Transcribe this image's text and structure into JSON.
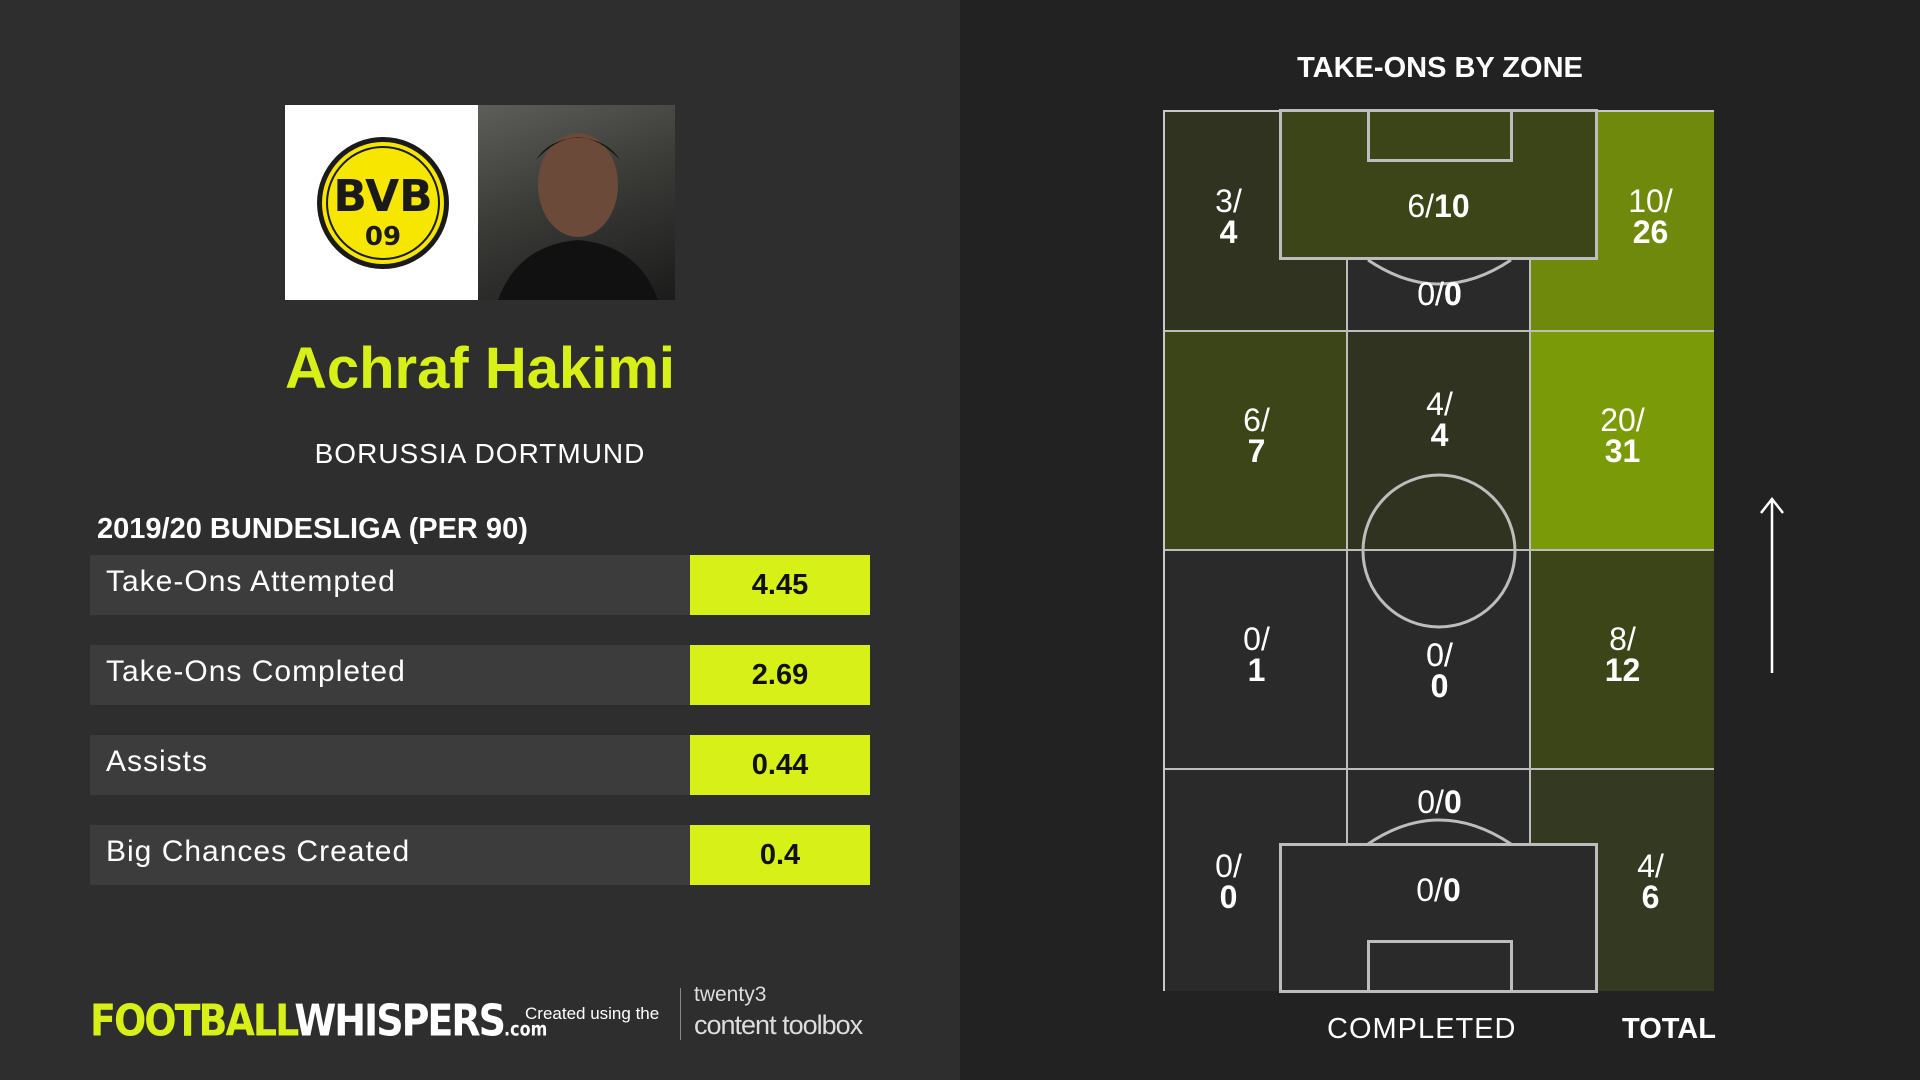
{
  "player": {
    "name": "Achraf Hakimi",
    "club": "BORUSSIA DORTMUND",
    "crest_text_top": "BVB",
    "crest_text_bottom": "09"
  },
  "stats": {
    "heading": "2019/20 BUNDESLIGA (PER 90)",
    "rows": [
      {
        "label": "Take-Ons Attempted",
        "value": "4.45"
      },
      {
        "label": "Take-Ons Completed",
        "value": "2.69"
      },
      {
        "label": "Assists",
        "value": "0.44"
      },
      {
        "label": "Big Chances Created",
        "value": "0.4"
      }
    ]
  },
  "footer": {
    "brand_main": "FOOTBALL",
    "brand_second": "WHISPERS",
    "brand_suffix": ".com",
    "created_using": "Created using the",
    "toolbox_top": "twenty3",
    "toolbox_bottom": "content toolbox"
  },
  "chart": {
    "title": "TAKE-ONS BY ZONE",
    "legend_completed": "COMPLETED",
    "legend_total": "TOTAL"
  },
  "colors": {
    "accent": "#d6f018",
    "zone_dark": "#2e2e2e",
    "zone_low": "#343a22",
    "zone_mid": "#3c4518",
    "zone_high": "#6f890c",
    "zone_max": "#7b9a08"
  },
  "chart_data": {
    "type": "heatmap",
    "title": "TAKE-ONS BY ZONE",
    "zones": [
      {
        "zone": "attacking-left-wide",
        "completed": "3",
        "total": "4"
      },
      {
        "zone": "attacking-penalty-area",
        "completed": "6",
        "total": "10"
      },
      {
        "zone": "attacking-box-edge",
        "completed": "0",
        "total": "0"
      },
      {
        "zone": "attacking-right-wide",
        "completed": "10",
        "total": "26"
      },
      {
        "zone": "upper-mid-left",
        "completed": "6",
        "total": "7"
      },
      {
        "zone": "upper-mid-center",
        "completed": "4",
        "total": "4"
      },
      {
        "zone": "upper-mid-right",
        "completed": "20",
        "total": "31"
      },
      {
        "zone": "lower-mid-left",
        "completed": "0",
        "total": "1"
      },
      {
        "zone": "lower-mid-center",
        "completed": "0",
        "total": "0"
      },
      {
        "zone": "lower-mid-right",
        "completed": "8",
        "total": "12"
      },
      {
        "zone": "defensive-box-edge",
        "completed": "0",
        "total": "0"
      },
      {
        "zone": "defensive-left-wide",
        "completed": "0",
        "total": "0"
      },
      {
        "zone": "defensive-penalty-area",
        "completed": "0",
        "total": "0"
      },
      {
        "zone": "defensive-right-wide",
        "completed": "4",
        "total": "6"
      }
    ],
    "direction_of_play": "up"
  }
}
